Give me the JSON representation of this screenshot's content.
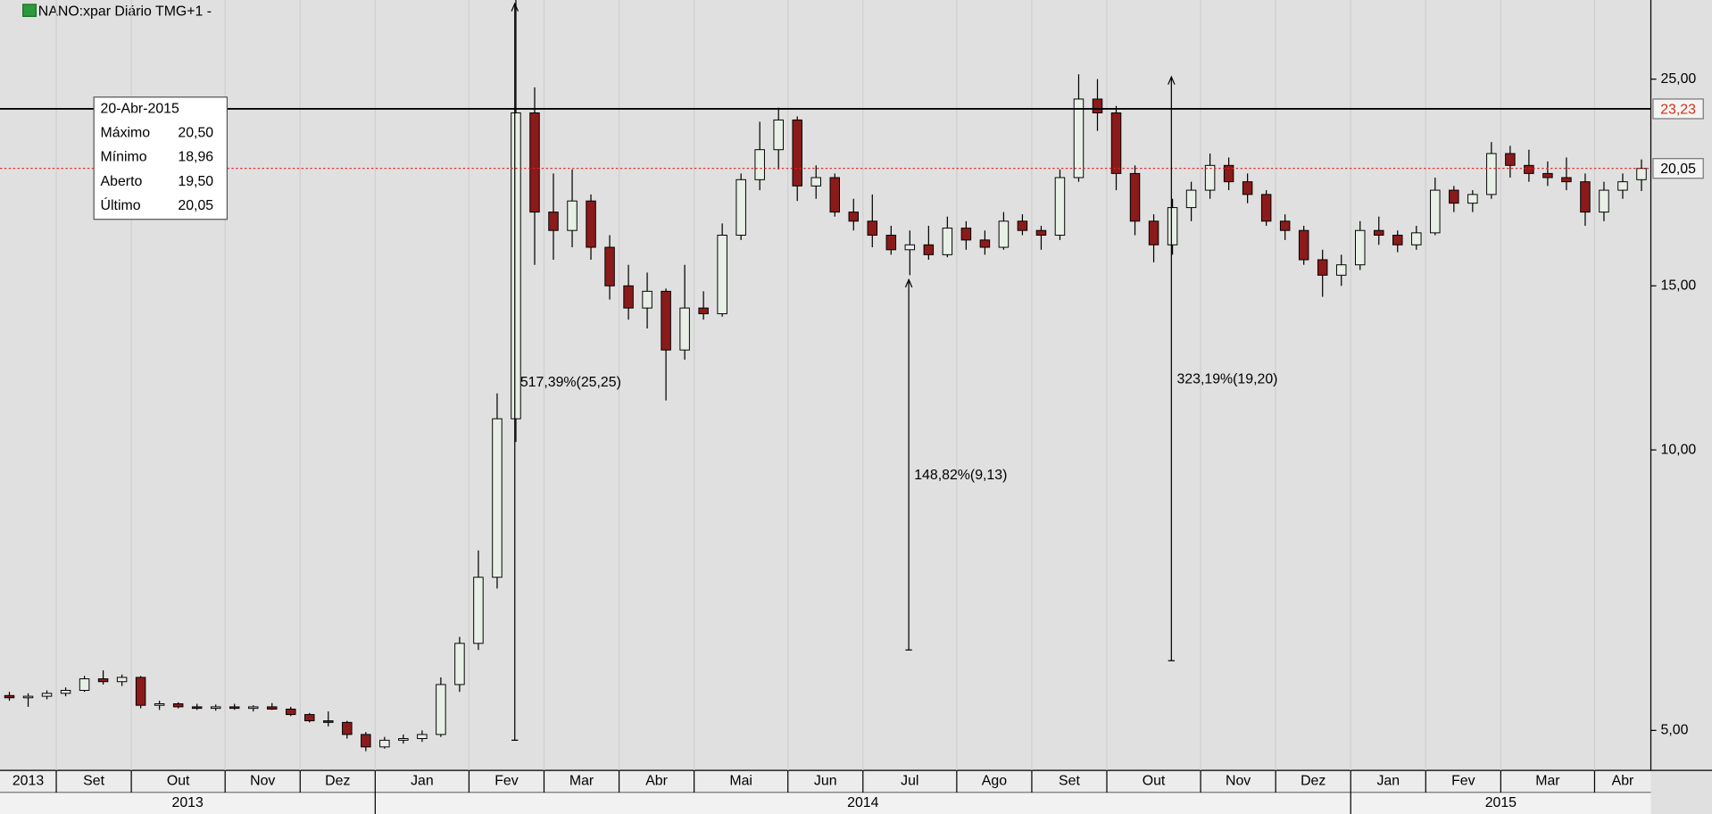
{
  "chart_data": {
    "type": "candlestick",
    "title": "NANO:xpar Diário TMG+1  -",
    "log_scale": true,
    "ylim": [
      4.53,
      30.4
    ],
    "yticks": [
      {
        "value": 5,
        "label": "5,00"
      },
      {
        "value": 10,
        "label": "10,00"
      },
      {
        "value": 15,
        "label": "15,00"
      },
      {
        "value": 25,
        "label": "25,00"
      }
    ],
    "categories": [
      "2013",
      null,
      null,
      "Set",
      null,
      null,
      null,
      "Out",
      null,
      null,
      null,
      null,
      "Nov",
      null,
      null,
      null,
      "Dez",
      null,
      null,
      null,
      "Jan",
      null,
      null,
      null,
      null,
      "Fev",
      null,
      null,
      null,
      "Mar",
      null,
      null,
      null,
      "Abr",
      null,
      null,
      null,
      "Mai",
      null,
      null,
      null,
      null,
      "Jun",
      null,
      null,
      null,
      "Jul",
      null,
      null,
      null,
      null,
      "Ago",
      null,
      null,
      null,
      "Set",
      null,
      null,
      null,
      "Out",
      null,
      null,
      null,
      null,
      "Nov",
      null,
      null,
      null,
      "Dez",
      null,
      null,
      null,
      "Jan",
      null,
      null,
      null,
      "Fev",
      null,
      null,
      null,
      "Mar",
      null,
      null,
      null,
      null,
      "Abr",
      null,
      null
    ],
    "years": [
      "2013",
      "2014",
      "2015"
    ],
    "open": [
      5.45,
      5.42,
      5.44,
      5.48,
      5.52,
      5.68,
      5.64,
      5.7,
      5.32,
      5.34,
      5.3,
      5.28,
      5.3,
      5.28,
      5.3,
      5.27,
      5.2,
      5.12,
      5.1,
      4.95,
      4.8,
      4.88,
      4.9,
      4.95,
      5.6,
      6.2,
      7.3,
      10.8,
      23.0,
      18.0,
      17.2,
      18.5,
      16.5,
      15.0,
      14.2,
      14.8,
      12.8,
      14.2,
      14.0,
      17.0,
      19.5,
      21.0,
      22.6,
      19.2,
      19.6,
      18.0,
      17.6,
      17.0,
      16.4,
      16.6,
      16.2,
      17.3,
      16.8,
      16.5,
      17.6,
      17.2,
      17.0,
      19.6,
      23.8,
      23.0,
      19.8,
      17.6,
      16.6,
      18.2,
      19.0,
      20.2,
      19.4,
      18.8,
      17.6,
      17.2,
      16.0,
      15.4,
      15.8,
      17.2,
      17.0,
      16.6,
      17.1,
      19.0,
      18.4,
      18.8,
      20.8,
      20.2,
      19.8,
      19.6,
      19.4,
      18.0,
      19.0,
      19.5
    ],
    "high": [
      5.5,
      5.48,
      5.52,
      5.56,
      5.72,
      5.8,
      5.74,
      5.72,
      5.38,
      5.36,
      5.34,
      5.33,
      5.34,
      5.32,
      5.35,
      5.3,
      5.22,
      5.24,
      5.12,
      4.98,
      4.92,
      4.95,
      5.0,
      5.7,
      6.3,
      7.8,
      11.5,
      30.4,
      24.5,
      19.8,
      20.0,
      18.8,
      17.0,
      15.8,
      15.5,
      14.9,
      15.8,
      14.8,
      17.5,
      19.8,
      22.5,
      23.3,
      22.8,
      20.2,
      19.8,
      18.6,
      18.8,
      17.4,
      17.2,
      17.4,
      17.8,
      17.6,
      17.2,
      18.0,
      17.9,
      17.4,
      20.0,
      25.3,
      25.0,
      23.4,
      20.2,
      17.9,
      18.6,
      19.4,
      20.8,
      20.6,
      19.8,
      19.0,
      17.9,
      17.4,
      16.4,
      16.2,
      17.6,
      17.8,
      17.2,
      17.4,
      19.6,
      19.2,
      19.0,
      21.4,
      21.2,
      21.0,
      20.4,
      20.6,
      19.8,
      19.4,
      19.8,
      20.5
    ],
    "low": [
      5.38,
      5.3,
      5.4,
      5.44,
      5.5,
      5.6,
      5.58,
      5.28,
      5.26,
      5.28,
      5.26,
      5.25,
      5.26,
      5.24,
      5.26,
      5.18,
      5.1,
      5.05,
      4.9,
      4.75,
      4.78,
      4.84,
      4.86,
      4.92,
      5.5,
      6.1,
      7.1,
      10.2,
      15.8,
      16.0,
      16.5,
      16.0,
      14.5,
      13.8,
      13.5,
      11.3,
      12.5,
      13.8,
      13.9,
      16.8,
      19.0,
      20.0,
      18.5,
      18.6,
      17.8,
      17.2,
      16.5,
      16.2,
      15.4,
      16.0,
      16.1,
      16.4,
      16.2,
      16.4,
      17.0,
      16.4,
      16.8,
      19.4,
      22.0,
      19.0,
      17.0,
      15.9,
      16.2,
      17.6,
      18.6,
      19.0,
      18.4,
      17.4,
      16.8,
      15.8,
      14.6,
      15.0,
      15.6,
      16.6,
      16.3,
      16.4,
      17.0,
      18.0,
      18.0,
      18.6,
      19.6,
      19.4,
      19.2,
      19.0,
      17.4,
      17.6,
      18.6,
      18.96
    ],
    "close": [
      5.42,
      5.44,
      5.48,
      5.52,
      5.68,
      5.64,
      5.7,
      5.32,
      5.34,
      5.3,
      5.28,
      5.3,
      5.28,
      5.3,
      5.27,
      5.2,
      5.12,
      5.1,
      4.95,
      4.8,
      4.88,
      4.9,
      4.95,
      5.6,
      6.2,
      7.3,
      10.8,
      23.0,
      18.0,
      17.2,
      18.5,
      16.5,
      15.0,
      14.2,
      14.8,
      12.8,
      14.2,
      14.0,
      17.0,
      19.5,
      21.0,
      22.6,
      19.2,
      19.6,
      18.0,
      17.6,
      17.0,
      16.4,
      16.6,
      16.2,
      17.3,
      16.8,
      16.5,
      17.6,
      17.2,
      17.0,
      19.6,
      23.8,
      23.0,
      19.8,
      17.6,
      16.6,
      18.2,
      19.0,
      20.2,
      19.4,
      18.8,
      17.6,
      17.2,
      16.0,
      15.4,
      15.8,
      17.2,
      17.0,
      16.6,
      17.1,
      19.0,
      18.4,
      18.8,
      20.8,
      20.2,
      19.8,
      19.6,
      19.4,
      18.0,
      19.0,
      19.4,
      20.05
    ],
    "up_color": "#e8efe6",
    "down_color": "#8b1a1a",
    "hlines": [
      {
        "price": {
          "value": 23.23,
          "label": "23,23"
        },
        "color": "#000000",
        "style": "solid",
        "label_color": "#d03010"
      },
      {
        "price": {
          "value": 20.05,
          "label": "20,05"
        },
        "color": "#e02020",
        "style": "dotted",
        "label_color": "#000000"
      }
    ],
    "measures": [
      {
        "label": "517,39%(25,25)",
        "category": 27,
        "from": 4.88,
        "to": 30.13
      },
      {
        "label": "148,82%(9,13)",
        "category": 48,
        "from": 6.1,
        "to": 15.23
      },
      {
        "label": "323,19%(19,20)",
        "category": 62,
        "from": 5.94,
        "to": 25.14
      }
    ],
    "infobox": {
      "date": "20-Abr-2015",
      "rows": [
        {
          "label": "Máximo",
          "value": "20,50"
        },
        {
          "label": "Mínimo",
          "value": "18,96"
        },
        {
          "label": "Aberto",
          "value": "19,50"
        },
        {
          "label": "Último",
          "value": "20,05"
        }
      ]
    }
  }
}
